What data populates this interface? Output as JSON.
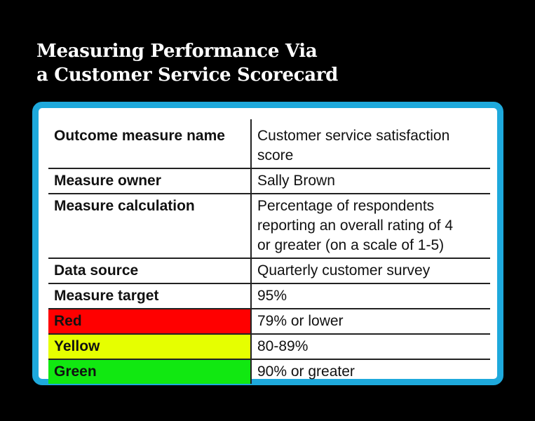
{
  "title": {
    "line1": "Measuring Performance Via",
    "line2": "a Customer Service Scorecard"
  },
  "scorecard": {
    "rows": [
      {
        "label": "Outcome measure name",
        "value_line1": "Customer service satisfaction",
        "value_line2": "score"
      },
      {
        "label": "Measure owner",
        "value": "Sally Brown"
      },
      {
        "label": "Measure calculation",
        "value_line1": "Percentage of respondents",
        "value_line2": "reporting an overall rating of 4",
        "value_line3": "or greater (on a scale of 1-5)"
      },
      {
        "label": "Data source",
        "value": "Quarterly customer survey"
      },
      {
        "label": "Measure target",
        "value": "95%"
      },
      {
        "label": "Red",
        "value": "79% or lower",
        "color": "#ff0000"
      },
      {
        "label": "Yellow",
        "value": "80-89%",
        "color": "#e6ff00"
      },
      {
        "label": "Green",
        "value": "90% or greater",
        "color": "#11e811"
      }
    ]
  },
  "colors": {
    "frame": "#1ea9dc",
    "background": "#000000"
  }
}
